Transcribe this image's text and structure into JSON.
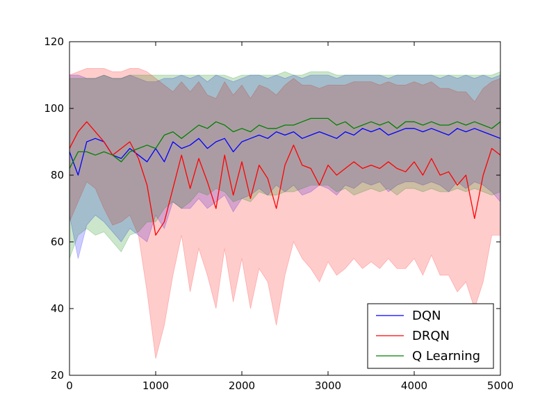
{
  "chart_data": {
    "type": "line",
    "title": "",
    "xlabel": "",
    "ylabel": "",
    "xlim": [
      0,
      5000
    ],
    "ylim": [
      20,
      120
    ],
    "x_ticks": [
      0,
      1000,
      2000,
      3000,
      4000,
      5000
    ],
    "y_ticks": [
      20,
      40,
      60,
      80,
      100,
      120
    ],
    "x_tick_labels": [
      "0",
      "1000",
      "2000",
      "3000",
      "4000",
      "5000"
    ],
    "y_tick_labels": [
      "20",
      "40",
      "60",
      "80",
      "100",
      "120"
    ],
    "grid": false,
    "legend_position": "lower-right",
    "x": [
      0,
      100,
      200,
      300,
      400,
      500,
      600,
      700,
      800,
      900,
      1000,
      1100,
      1200,
      1300,
      1400,
      1500,
      1600,
      1700,
      1800,
      1900,
      2000,
      2100,
      2200,
      2300,
      2400,
      2500,
      2600,
      2700,
      2800,
      2900,
      3000,
      3100,
      3200,
      3300,
      3400,
      3500,
      3600,
      3700,
      3800,
      3900,
      4000,
      4100,
      4200,
      4300,
      4400,
      4500,
      4600,
      4700,
      4800,
      4900,
      5000
    ],
    "series": [
      {
        "name": "DQN",
        "color": "#0000ff",
        "values": [
          87,
          80,
          90,
          91,
          90,
          86,
          85,
          88,
          86,
          84,
          88,
          84,
          90,
          88,
          89,
          91,
          88,
          90,
          91,
          87,
          90,
          91,
          92,
          91,
          93,
          92,
          93,
          91,
          92,
          93,
          92,
          91,
          93,
          92,
          94,
          93,
          94,
          92,
          93,
          94,
          94,
          93,
          94,
          93,
          92,
          94,
          93,
          94,
          93,
          92,
          91
        ],
        "upper": [
          110,
          110,
          109,
          109,
          110,
          109,
          109,
          110,
          109,
          108,
          108,
          109,
          109,
          110,
          109,
          110,
          108,
          110,
          109,
          108,
          109,
          110,
          110,
          109,
          110,
          109,
          110,
          109,
          110,
          110,
          110,
          109,
          110,
          110,
          110,
          110,
          110,
          109,
          110,
          110,
          110,
          110,
          110,
          109,
          110,
          109,
          110,
          109,
          110,
          109,
          110
        ],
        "lower": [
          68,
          55,
          65,
          68,
          66,
          63,
          60,
          64,
          62,
          60,
          68,
          64,
          72,
          70,
          70,
          73,
          70,
          72,
          74,
          69,
          73,
          74,
          76,
          74,
          77,
          75,
          77,
          74,
          75,
          77,
          76,
          74,
          77,
          76,
          78,
          77,
          78,
          75,
          77,
          78,
          78,
          77,
          78,
          77,
          75,
          78,
          76,
          78,
          77,
          75,
          72
        ]
      },
      {
        "name": "DRQN",
        "color": "#ff0000",
        "values": [
          88,
          93,
          96,
          93,
          90,
          86,
          88,
          90,
          85,
          77,
          62,
          66,
          76,
          86,
          76,
          85,
          78,
          70,
          86,
          74,
          84,
          73,
          83,
          79,
          70,
          83,
          89,
          83,
          82,
          77,
          83,
          80,
          82,
          84,
          82,
          83,
          82,
          84,
          82,
          81,
          84,
          80,
          85,
          80,
          81,
          77,
          80,
          67,
          80,
          88,
          86
        ],
        "upper": [
          110,
          111,
          112,
          112,
          112,
          111,
          111,
          112,
          112,
          111,
          109,
          107,
          105,
          108,
          105,
          108,
          104,
          103,
          108,
          104,
          107,
          103,
          107,
          106,
          104,
          107,
          109,
          107,
          107,
          106,
          107,
          107,
          107,
          108,
          108,
          108,
          107,
          108,
          107,
          107,
          108,
          107,
          108,
          106,
          106,
          105,
          105,
          102,
          106,
          108,
          109
        ],
        "lower": [
          66,
          72,
          78,
          76,
          70,
          65,
          66,
          68,
          62,
          45,
          25,
          35,
          50,
          62,
          45,
          58,
          50,
          40,
          58,
          42,
          55,
          40,
          52,
          48,
          35,
          50,
          60,
          55,
          52,
          48,
          54,
          50,
          52,
          55,
          52,
          54,
          52,
          55,
          52,
          52,
          55,
          50,
          56,
          50,
          50,
          45,
          48,
          40,
          48,
          62,
          62
        ]
      },
      {
        "name": "Q Learning",
        "color": "#008000",
        "values": [
          82,
          87,
          87,
          86,
          87,
          86,
          84,
          87,
          88,
          89,
          88,
          92,
          93,
          91,
          93,
          95,
          94,
          96,
          95,
          93,
          94,
          93,
          95,
          94,
          94,
          95,
          95,
          96,
          97,
          97,
          97,
          95,
          96,
          94,
          95,
          96,
          95,
          96,
          94,
          96,
          96,
          95,
          96,
          95,
          95,
          96,
          95,
          96,
          95,
          94,
          96
        ],
        "upper": [
          109,
          109,
          109,
          109,
          110,
          109,
          109,
          110,
          110,
          110,
          110,
          110,
          110,
          110,
          110,
          110,
          110,
          110,
          110,
          109,
          110,
          110,
          110,
          110,
          110,
          111,
          110,
          110,
          111,
          111,
          111,
          110,
          110,
          110,
          110,
          110,
          110,
          110,
          110,
          110,
          110,
          110,
          110,
          110,
          110,
          110,
          110,
          110,
          110,
          110,
          111
        ],
        "lower": [
          55,
          62,
          64,
          62,
          63,
          60,
          57,
          62,
          63,
          66,
          66,
          70,
          72,
          70,
          72,
          75,
          74,
          76,
          75,
          72,
          73,
          72,
          75,
          74,
          74,
          75,
          75,
          76,
          77,
          77,
          77,
          75,
          76,
          74,
          75,
          76,
          75,
          76,
          74,
          76,
          76,
          75,
          76,
          75,
          75,
          76,
          75,
          76,
          75,
          74,
          75
        ]
      }
    ]
  }
}
